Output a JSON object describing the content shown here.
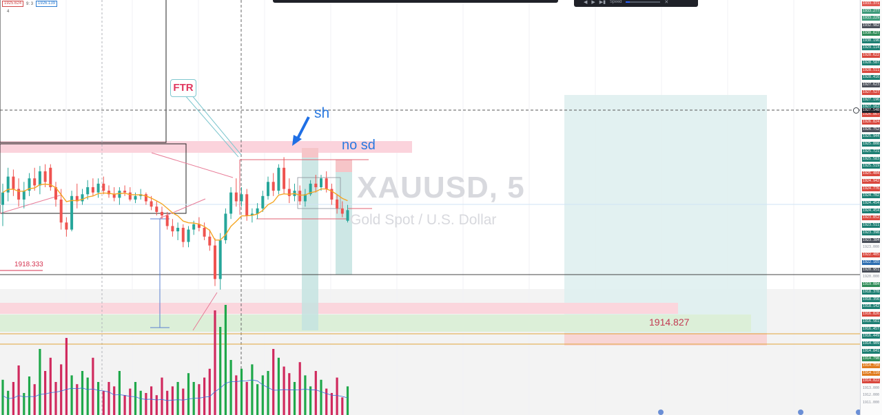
{
  "symbol": "XAUUSD, 5",
  "symbol_description": "Gold Spot / U.S. Dollar",
  "header_badges": {
    "price_a": "1925.624",
    "ratio": "9: 3",
    "price_b": "1926.139",
    "count": "4"
  },
  "replay": {
    "speed_label": "Speed"
  },
  "annotations": {
    "ftr": "FTR",
    "sh": "sh",
    "no_sd": "no sd",
    "level_left": "1918.333",
    "level_right": "1914.827"
  },
  "price_axis": [
    {
      "v": "1933.371",
      "c": "#e0564f"
    },
    {
      "v": "1933.277",
      "c": "#3d9a7a"
    },
    {
      "v": "1933.229",
      "c": "#3d9a7a"
    },
    {
      "v": "1932.982",
      "c": "#4a4f59"
    },
    {
      "v": "1930.627",
      "c": "#2e8b57"
    },
    {
      "v": "1930.196",
      "c": "#1c7e72"
    },
    {
      "v": "1929.114",
      "c": "#1c7e72"
    },
    {
      "v": "1928.622",
      "c": "#d9473d"
    },
    {
      "v": "1928.587",
      "c": "#1c7e72"
    },
    {
      "v": "1928.511",
      "c": "#d9473d"
    },
    {
      "v": "1928.416",
      "c": "#1c7e72"
    },
    {
      "v": "1927.623",
      "c": "#4a4f59"
    },
    {
      "v": "1927.527",
      "c": "#d9473d"
    },
    {
      "v": "1927.196",
      "c": "#1c7e72"
    },
    {
      "v": "1927.162",
      "c": "#1c7e72"
    },
    {
      "v": "1926.867",
      "c": "#d9473d"
    },
    {
      "v": "1926.824",
      "c": "#d9473d"
    },
    {
      "v": "1926.752",
      "c": "#4a4f59"
    },
    {
      "v": "1925.944",
      "c": "#1c7e72"
    },
    {
      "v": "1925.808",
      "c": "#1c7e72"
    },
    {
      "v": "1925.721",
      "c": "#1c7e72"
    },
    {
      "v": "1925.583",
      "c": "#1c7e72"
    },
    {
      "v": "1925.519",
      "c": "#1c7e72"
    },
    {
      "v": "1925.404",
      "c": "#d9473d"
    },
    {
      "v": "1924.942",
      "c": "#d9473d"
    },
    {
      "v": "1924.776",
      "c": "#d9473d"
    },
    {
      "v": "1924.702",
      "c": "#1c7e72"
    },
    {
      "v": "1924.454",
      "c": "#1c7e72"
    },
    {
      "v": "1924.454",
      "c": "#1c7e72"
    },
    {
      "v": "1923.852",
      "c": "#d9473d"
    },
    {
      "v": "1923.511",
      "c": "#1c7e72"
    },
    {
      "v": "1923.398",
      "c": "#1c7e72"
    },
    {
      "v": "1923.384",
      "c": "#4a4f59"
    },
    {
      "v": "1923.000",
      "c": "plain"
    },
    {
      "v": "1922.405",
      "c": "#d9473d"
    },
    {
      "v": "1922.165",
      "c": "#2b6cb0"
    },
    {
      "v": "1920.951",
      "c": "#4a4f59"
    },
    {
      "v": "1920.000",
      "c": "plain"
    },
    {
      "v": "1919.084",
      "c": "#2e8b57"
    },
    {
      "v": "1918.378",
      "c": "#1c7e72"
    },
    {
      "v": "1918.356",
      "c": "#1c7e72"
    },
    {
      "v": "1918.142",
      "c": "#1c7e72"
    },
    {
      "v": "1916.826",
      "c": "#d9473d"
    },
    {
      "v": "1916.561",
      "c": "#1c7e72"
    },
    {
      "v": "1916.457",
      "c": "#1c7e72"
    },
    {
      "v": "1916.449",
      "c": "#1c7e72"
    },
    {
      "v": "1914.909",
      "c": "#1c7e72"
    },
    {
      "v": "1914.841",
      "c": "#1c7e72"
    },
    {
      "v": "1914.798",
      "c": "#2e8b57"
    },
    {
      "v": "1914.750",
      "c": "#e07b1c"
    },
    {
      "v": "1914.110",
      "c": "#e07b1c"
    },
    {
      "v": "1914.022",
      "c": "#d9473d"
    },
    {
      "v": "1913.000",
      "c": "plain"
    },
    {
      "v": "1912.000",
      "c": "plain"
    },
    {
      "v": "1911.000",
      "c": "plain"
    }
  ],
  "current_price": "1927.548",
  "colors": {
    "up": "#26a69a",
    "down": "#ef5350",
    "ema": "#f5a623",
    "target_zone": "#dff0f0",
    "stop_zone": "#f8d5d5",
    "demand_zone": "#dcefd8",
    "supply_zone": "#fbd6dd",
    "volume_up": "#1fa84a",
    "volume_down": "#d02a5e"
  },
  "chart_data": {
    "type": "candlestick",
    "title": "XAUUSD, 5",
    "ylim": [
      1910.5,
      1934
    ],
    "ohlc": [
      [
        1922.4,
        1923.6,
        1921.2,
        1923.1
      ],
      [
        1923.1,
        1924.5,
        1922.6,
        1924.0
      ],
      [
        1924.0,
        1924.4,
        1922.9,
        1923.3
      ],
      [
        1923.3,
        1923.9,
        1922.3,
        1922.7
      ],
      [
        1922.7,
        1923.7,
        1922.2,
        1923.2
      ],
      [
        1923.2,
        1924.2,
        1922.9,
        1923.9
      ],
      [
        1923.9,
        1924.5,
        1923.2,
        1923.5
      ],
      [
        1923.5,
        1924.6,
        1923.0,
        1924.3
      ],
      [
        1924.3,
        1924.7,
        1923.4,
        1923.7
      ],
      [
        1924.5,
        1924.7,
        1923.2,
        1923.4
      ],
      [
        1923.4,
        1923.7,
        1922.3,
        1922.7
      ],
      [
        1922.7,
        1923.3,
        1921.0,
        1921.4
      ],
      [
        1921.4,
        1921.7,
        1920.6,
        1921.0
      ],
      [
        1921.0,
        1923.2,
        1920.9,
        1922.9
      ],
      [
        1922.9,
        1923.6,
        1922.2,
        1922.6
      ],
      [
        1922.6,
        1923.3,
        1922.4,
        1923.0
      ],
      [
        1923.0,
        1923.8,
        1922.7,
        1923.4
      ],
      [
        1923.4,
        1923.9,
        1922.9,
        1923.1
      ],
      [
        1923.1,
        1923.9,
        1922.8,
        1923.6
      ],
      [
        1923.6,
        1924.0,
        1923.0,
        1923.2
      ],
      [
        1923.2,
        1923.5,
        1922.8,
        1923.0
      ],
      [
        1923.0,
        1923.4,
        1922.6,
        1922.8
      ],
      [
        1922.8,
        1923.4,
        1922.4,
        1923.2
      ],
      [
        1923.2,
        1923.5,
        1922.9,
        1923.1
      ],
      [
        1923.1,
        1923.4,
        1922.6,
        1922.7
      ],
      [
        1922.7,
        1923.1,
        1922.5,
        1922.9
      ],
      [
        1922.9,
        1923.3,
        1922.7,
        1923.0
      ],
      [
        1923.0,
        1923.1,
        1922.4,
        1922.6
      ],
      [
        1922.6,
        1922.9,
        1922.1,
        1922.3
      ],
      [
        1922.3,
        1922.6,
        1921.8,
        1922.0
      ],
      [
        1922.0,
        1922.3,
        1921.6,
        1921.8
      ],
      [
        1921.8,
        1922.0,
        1921.0,
        1921.2
      ],
      [
        1921.2,
        1921.6,
        1920.6,
        1920.9
      ],
      [
        1920.9,
        1921.4,
        1920.4,
        1921.1
      ],
      [
        1921.1,
        1921.3,
        1920.0,
        1920.3
      ],
      [
        1920.3,
        1921.2,
        1920.0,
        1921.0
      ],
      [
        1921.0,
        1921.5,
        1920.7,
        1921.3
      ],
      [
        1921.3,
        1921.7,
        1920.9,
        1921.1
      ],
      [
        1921.1,
        1921.4,
        1920.4,
        1920.6
      ],
      [
        1920.6,
        1921.0,
        1919.8,
        1920.1
      ],
      [
        1920.1,
        1920.5,
        1917.8,
        1918.2
      ],
      [
        1918.2,
        1920.8,
        1917.6,
        1920.4
      ],
      [
        1920.4,
        1922.2,
        1920.2,
        1921.9
      ],
      [
        1921.9,
        1923.4,
        1921.6,
        1923.1
      ],
      [
        1923.1,
        1923.9,
        1922.3,
        1922.6
      ],
      [
        1922.6,
        1923.4,
        1922.3,
        1923.0
      ],
      [
        1923.0,
        1923.3,
        1921.5,
        1921.8
      ],
      [
        1921.8,
        1922.2,
        1921.4,
        1921.9
      ],
      [
        1921.9,
        1922.5,
        1921.6,
        1922.2
      ],
      [
        1922.2,
        1923.2,
        1922.0,
        1922.9
      ],
      [
        1922.9,
        1924.0,
        1922.7,
        1923.7
      ],
      [
        1923.7,
        1924.2,
        1922.9,
        1923.2
      ],
      [
        1923.2,
        1924.7,
        1923.0,
        1924.5
      ],
      [
        1924.5,
        1925.1,
        1923.0,
        1923.3
      ],
      [
        1923.3,
        1923.9,
        1922.5,
        1922.9
      ],
      [
        1922.9,
        1923.6,
        1922.6,
        1923.2
      ],
      [
        1923.2,
        1923.5,
        1922.4,
        1922.6
      ],
      [
        1922.6,
        1923.3,
        1922.3,
        1923.0
      ],
      [
        1923.0,
        1923.8,
        1922.9,
        1923.6
      ],
      [
        1923.6,
        1924.1,
        1923.1,
        1923.4
      ],
      [
        1923.4,
        1924.1,
        1923.2,
        1923.9
      ],
      [
        1923.9,
        1924.3,
        1923.1,
        1923.3
      ],
      [
        1923.3,
        1923.6,
        1922.4,
        1922.7
      ],
      [
        1922.7,
        1923.0,
        1921.9,
        1922.2
      ],
      [
        1922.2,
        1922.6,
        1921.7,
        1921.9
      ],
      [
        1921.5,
        1922.4,
        1921.4,
        1922.1
      ]
    ],
    "volume": [
      0.32,
      0.22,
      0.3,
      0.45,
      0.2,
      0.35,
      0.28,
      0.6,
      0.4,
      0.52,
      0.3,
      0.46,
      0.7,
      0.36,
      0.28,
      0.4,
      0.34,
      0.52,
      0.3,
      0.22,
      0.3,
      0.26,
      0.4,
      0.18,
      0.24,
      0.3,
      0.22,
      0.2,
      0.26,
      0.18,
      0.34,
      0.22,
      0.26,
      0.3,
      0.24,
      0.38,
      0.3,
      0.28,
      0.34,
      0.42,
      0.95,
      0.8,
      1.0,
      0.5,
      0.36,
      0.42,
      0.3,
      0.46,
      0.28,
      0.36,
      0.4,
      0.6,
      0.52,
      0.44,
      0.38,
      0.3,
      0.48,
      0.36,
      0.26,
      0.4,
      0.32,
      0.24,
      0.2,
      0.34,
      0.16,
      0.26
    ]
  }
}
